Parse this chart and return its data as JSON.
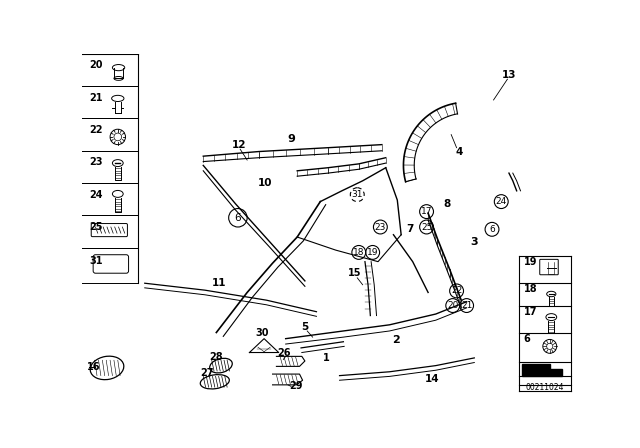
{
  "bg_color": "#ffffff",
  "diagram_id": "00211024",
  "fig_width": 6.4,
  "fig_height": 4.48,
  "dpi": 100
}
